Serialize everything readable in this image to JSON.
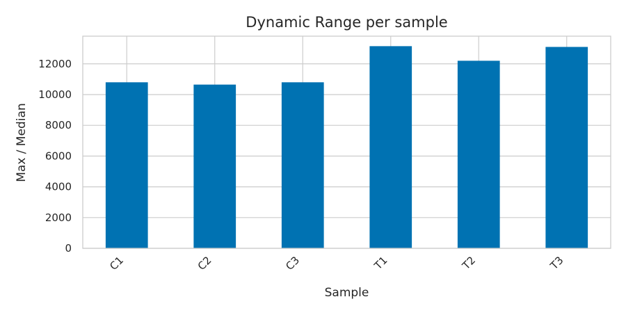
{
  "chart_data": {
    "type": "bar",
    "title": "Dynamic Range per sample",
    "xlabel": "Sample",
    "ylabel": "Max / Median",
    "categories": [
      "C1",
      "C2",
      "C3",
      "T1",
      "T2",
      "T3"
    ],
    "values": [
      10800,
      10650,
      10800,
      13150,
      12200,
      13100
    ],
    "ylim": [
      0,
      13800
    ],
    "yticks": [
      0,
      2000,
      4000,
      6000,
      8000,
      10000,
      12000
    ],
    "grid": true,
    "bar_color": "#0072b2",
    "grid_color": "#cccccc"
  }
}
